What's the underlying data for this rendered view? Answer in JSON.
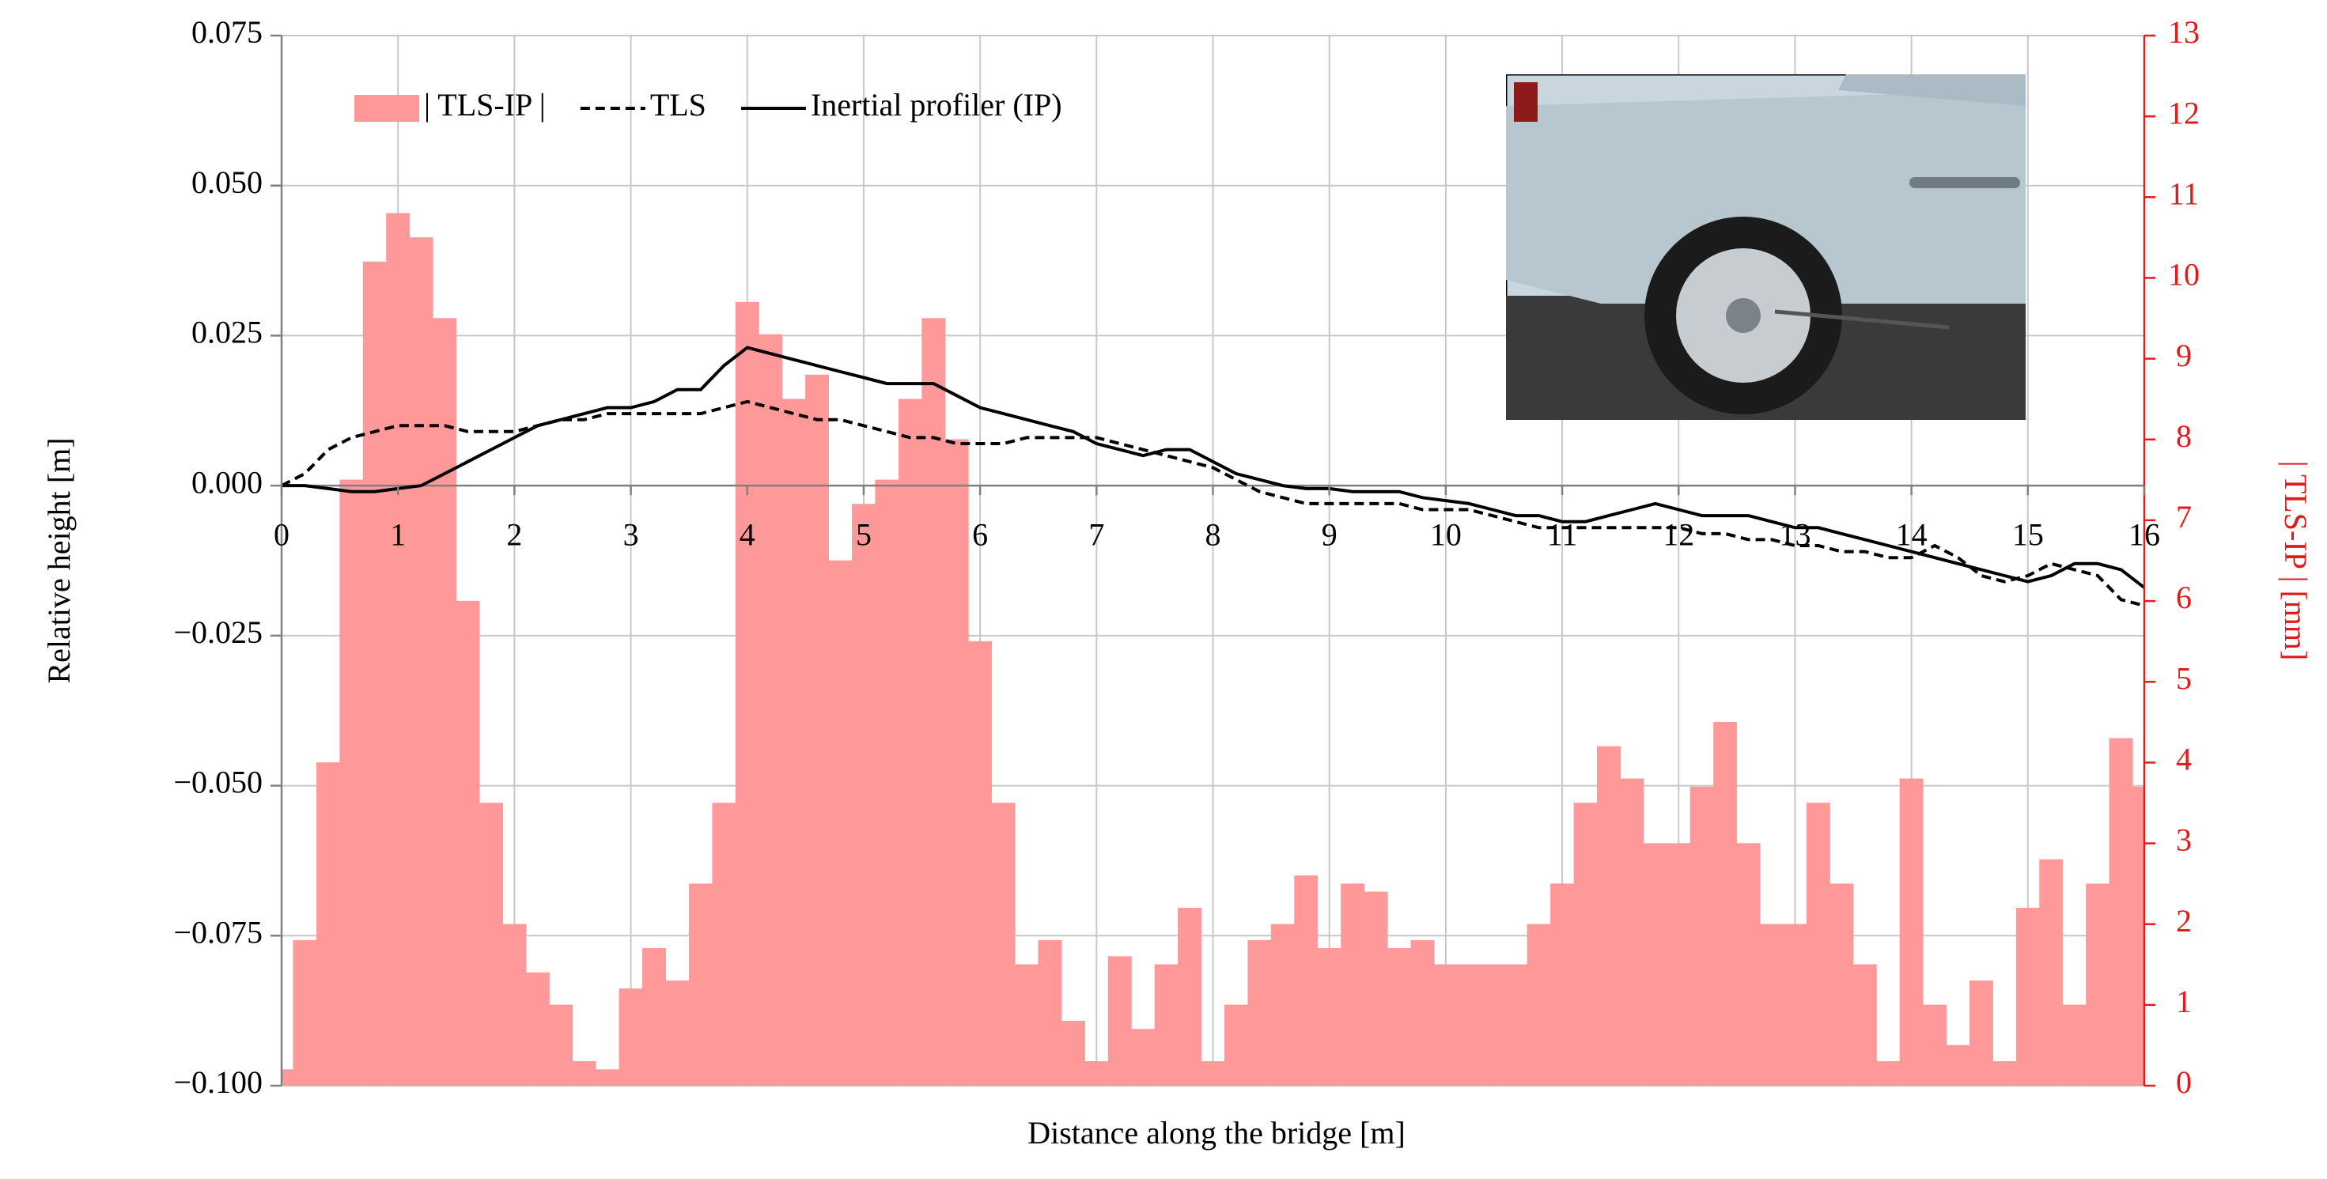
{
  "chart_data": {
    "type": "combo",
    "x_label": "Distance along the bridge [m]",
    "y_label": "Relative height [m]",
    "y2_label": "| TLS-IP | [mm]",
    "x": [
      0,
      0.2,
      0.4,
      0.6,
      0.8,
      1,
      1.2,
      1.4,
      1.6,
      1.8,
      2,
      2.2,
      2.4,
      2.6,
      2.8,
      3,
      3.2,
      3.4,
      3.6,
      3.8,
      4,
      4.2,
      4.4,
      4.6,
      4.8,
      5,
      5.2,
      5.4,
      5.6,
      5.8,
      6,
      6.2,
      6.4,
      6.6,
      6.8,
      7,
      7.2,
      7.4,
      7.6,
      7.8,
      8,
      8.2,
      8.4,
      8.6,
      8.8,
      9,
      9.2,
      9.4,
      9.6,
      9.8,
      10,
      10.2,
      10.4,
      10.6,
      10.8,
      11,
      11.2,
      11.4,
      11.6,
      11.8,
      12,
      12.2,
      12.4,
      12.6,
      12.8,
      13,
      13.2,
      13.4,
      13.6,
      13.8,
      14,
      14.2,
      14.4,
      14.6,
      14.8,
      15,
      15.2,
      15.4,
      15.6,
      15.8,
      16
    ],
    "xlim": [
      0,
      16
    ],
    "xticks": [
      0,
      1,
      2,
      3,
      4,
      5,
      6,
      7,
      8,
      9,
      10,
      11,
      12,
      13,
      14,
      15,
      16
    ],
    "ylim": [
      -0.1,
      0.075
    ],
    "yticks": [
      {
        "value": -0.1,
        "label": "−0.100"
      },
      {
        "value": -0.075,
        "label": "−0.075"
      },
      {
        "value": -0.05,
        "label": "−0.050"
      },
      {
        "value": -0.025,
        "label": "−0.025"
      },
      {
        "value": 0,
        "label": "0.000"
      },
      0.025,
      {
        "value": 0.05,
        "label": "0.050"
      },
      0.075
    ],
    "y2lim": [
      0,
      13
    ],
    "y2ticks": [
      0,
      1,
      2,
      3,
      4,
      5,
      6,
      7,
      8,
      9,
      10,
      11,
      12,
      13
    ],
    "y2_color": "#e31a1c",
    "grid": true,
    "legend": "upper left",
    "series": [
      {
        "name": "| TLS-IP |",
        "type": "bar",
        "axis": "y2",
        "color": "#ff9999",
        "values": [
          0.2,
          1.8,
          4,
          7.5,
          10.2,
          10.8,
          10.5,
          9.5,
          6,
          3.5,
          2,
          1.4,
          1,
          0.3,
          0.2,
          1.2,
          1.7,
          1.3,
          2.5,
          3.5,
          9.7,
          9.3,
          8.5,
          8.8,
          6.5,
          7.2,
          7.5,
          8.5,
          9.5,
          8,
          5.5,
          3.5,
          1.5,
          1.8,
          0.8,
          0.3,
          1.6,
          0.7,
          1.5,
          2.2,
          0.3,
          1,
          1.8,
          2,
          2.6,
          1.7,
          2.5,
          2.4,
          1.7,
          1.8,
          1.5,
          1.5,
          1.5,
          1.5,
          2,
          2.5,
          3.5,
          4.2,
          3.8,
          3,
          3,
          3.7,
          4.5,
          3,
          2,
          2,
          3.5,
          2.5,
          1.5,
          0.3,
          3.8,
          1,
          0.5,
          1.3,
          0.3,
          2.2,
          2.8,
          1,
          2.5,
          4.3,
          3.7
        ]
      },
      {
        "name": "TLS",
        "type": "line",
        "style": "dashed",
        "color": "#000000",
        "values": [
          0,
          0.002,
          0.006,
          0.008,
          0.009,
          0.01,
          0.01,
          0.01,
          0.009,
          0.009,
          0.009,
          0.01,
          0.011,
          0.011,
          0.012,
          0.012,
          0.012,
          0.012,
          0.012,
          0.013,
          0.014,
          0.013,
          0.012,
          0.011,
          0.011,
          0.01,
          0.009,
          0.008,
          0.008,
          0.007,
          0.007,
          0.007,
          0.008,
          0.008,
          0.008,
          0.008,
          0.007,
          0.006,
          0.005,
          0.004,
          0.003,
          0.001,
          -0.001,
          -0.002,
          -0.003,
          -0.003,
          -0.003,
          -0.003,
          -0.003,
          -0.004,
          -0.004,
          -0.004,
          -0.005,
          -0.006,
          -0.007,
          -0.007,
          -0.007,
          -0.007,
          -0.007,
          -0.007,
          -0.007,
          -0.008,
          -0.008,
          -0.009,
          -0.009,
          -0.01,
          -0.01,
          -0.011,
          -0.011,
          -0.012,
          -0.012,
          -0.01,
          -0.012,
          -0.015,
          -0.016,
          -0.015,
          -0.013,
          -0.014,
          -0.015,
          -0.019,
          -0.02
        ]
      },
      {
        "name": "Inertial profiler (IP)",
        "type": "line",
        "style": "solid",
        "color": "#000000",
        "values": [
          0,
          0,
          -0.0005,
          -0.001,
          -0.001,
          -0.0005,
          0,
          0.002,
          0.004,
          0.006,
          0.008,
          0.01,
          0.011,
          0.012,
          0.013,
          0.013,
          0.014,
          0.016,
          0.016,
          0.02,
          0.023,
          0.022,
          0.021,
          0.02,
          0.019,
          0.018,
          0.017,
          0.017,
          0.017,
          0.015,
          0.013,
          0.012,
          0.011,
          0.01,
          0.009,
          0.007,
          0.006,
          0.005,
          0.006,
          0.006,
          0.004,
          0.002,
          0.001,
          0,
          -0.0005,
          -0.0005,
          -0.001,
          -0.001,
          -0.001,
          -0.002,
          -0.0025,
          -0.003,
          -0.004,
          -0.005,
          -0.005,
          -0.006,
          -0.006,
          -0.005,
          -0.004,
          -0.003,
          -0.004,
          -0.005,
          -0.005,
          -0.005,
          -0.006,
          -0.007,
          -0.007,
          -0.008,
          -0.009,
          -0.01,
          -0.011,
          -0.012,
          -0.013,
          -0.014,
          -0.015,
          -0.016,
          -0.015,
          -0.013,
          -0.013,
          -0.014,
          -0.017
        ]
      }
    ]
  }
}
